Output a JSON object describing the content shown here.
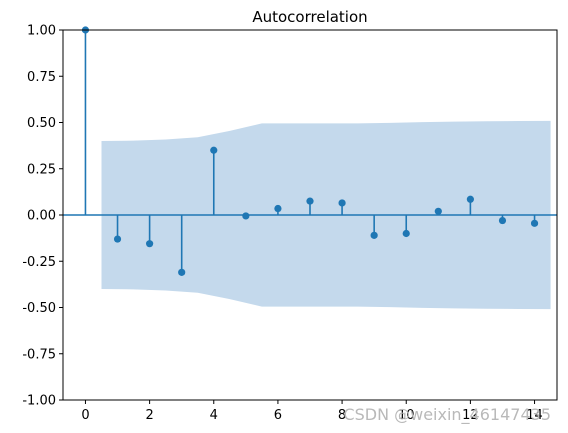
{
  "chart_data": {
    "type": "stem",
    "title": "Autocorrelation",
    "xlabel": "",
    "ylabel": "",
    "xlim": [
      -0.7,
      14.7
    ],
    "ylim": [
      -1.0,
      1.0
    ],
    "x_ticks": [
      0,
      2,
      4,
      6,
      8,
      10,
      12,
      14
    ],
    "y_ticks": [
      "-1.00",
      "-0.75",
      "-0.50",
      "-0.25",
      "0.00",
      "0.25",
      "0.50",
      "0.75",
      "1.00"
    ],
    "lags": [
      0,
      1,
      2,
      3,
      4,
      5,
      6,
      7,
      8,
      9,
      10,
      11,
      12,
      13,
      14
    ],
    "values": [
      1.0,
      -0.13,
      -0.155,
      -0.31,
      0.35,
      -0.005,
      0.035,
      0.075,
      0.065,
      -0.11,
      -0.1,
      0.02,
      0.085,
      -0.03,
      -0.045
    ],
    "confidence_band": {
      "x": [
        0.5,
        1.5,
        2.5,
        3.5,
        4.5,
        5.5,
        6.5,
        7.5,
        8.5,
        9.5,
        10.5,
        11.5,
        12.5,
        13.5,
        14.5
      ],
      "upper": [
        0.4,
        0.402,
        0.408,
        0.42,
        0.455,
        0.495,
        0.495,
        0.495,
        0.495,
        0.498,
        0.502,
        0.505,
        0.507,
        0.508,
        0.509
      ],
      "lower": [
        -0.4,
        -0.402,
        -0.408,
        -0.42,
        -0.455,
        -0.495,
        -0.495,
        -0.495,
        -0.495,
        -0.498,
        -0.502,
        -0.505,
        -0.507,
        -0.508,
        -0.509
      ]
    },
    "grid": false,
    "colors": {
      "stem": "#1f77b4",
      "band": "#c4d9ec",
      "zero_line": "#1f77b4"
    }
  },
  "watermark": "CSDN @weixin_46147435"
}
